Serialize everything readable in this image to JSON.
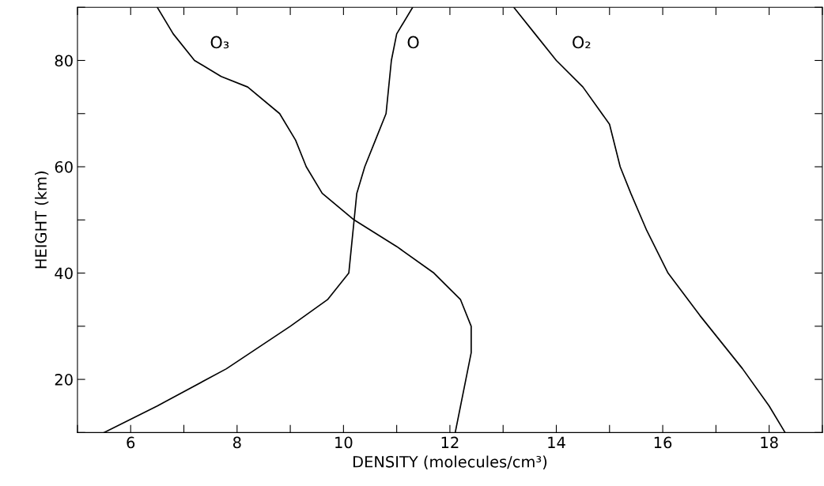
{
  "chart_data": {
    "type": "line",
    "xlabel": "DENSITY (molecules/cm³)",
    "ylabel": "HEIGHT (km)",
    "xlim": [
      5,
      19
    ],
    "ylim": [
      10,
      90
    ],
    "xticks": [
      {
        "value": 5,
        "label": null
      },
      6,
      {
        "value": 7,
        "label": null
      },
      8,
      {
        "value": 9,
        "label": null
      },
      10,
      {
        "value": 11,
        "label": null
      },
      12,
      {
        "value": 13,
        "label": null
      },
      14,
      {
        "value": 15,
        "label": null
      },
      16,
      {
        "value": 17,
        "label": null
      },
      18,
      {
        "value": 19,
        "label": null
      }
    ],
    "yticks": [
      {
        "value": 10,
        "label": null
      },
      20,
      {
        "value": 30,
        "label": null
      },
      40,
      {
        "value": 50,
        "label": null
      },
      60,
      {
        "value": 70,
        "label": null
      },
      80,
      {
        "value": 90,
        "label": null
      }
    ],
    "grid": false,
    "legend": false,
    "marker": "none",
    "line_style": "solid",
    "series": [
      {
        "name": "O₃",
        "color": "#000000",
        "x": [
          6.5,
          6.8,
          7.2,
          7.7,
          8.2,
          8.8,
          9.1,
          9.3,
          9.6,
          10.2,
          11.0,
          11.7,
          12.2,
          12.4,
          12.4,
          12.3,
          12.2,
          12.1
        ],
        "values": [
          90,
          85,
          80,
          77,
          75,
          70,
          65,
          60,
          55,
          50,
          45,
          40,
          35,
          30,
          25,
          20,
          15,
          10
        ]
      },
      {
        "name": "O",
        "color": "#000000",
        "x": [
          11.3,
          11.0,
          10.9,
          10.85,
          10.8,
          10.6,
          10.4,
          10.25,
          10.2,
          10.15,
          10.1,
          9.7,
          9.0,
          7.8,
          6.5,
          5.5
        ],
        "values": [
          90,
          85,
          80,
          75,
          70,
          65,
          60,
          55,
          50,
          45,
          40,
          35,
          30,
          22,
          15,
          10
        ]
      },
      {
        "name": "O₂",
        "color": "#000000",
        "x": [
          13.2,
          13.6,
          14.0,
          14.5,
          15.0,
          15.2,
          15.4,
          15.7,
          16.1,
          16.7,
          17.5,
          18.0,
          18.3
        ],
        "values": [
          90,
          85,
          80,
          75,
          68,
          60,
          55,
          48,
          40,
          32,
          22,
          15,
          10
        ]
      }
    ]
  }
}
